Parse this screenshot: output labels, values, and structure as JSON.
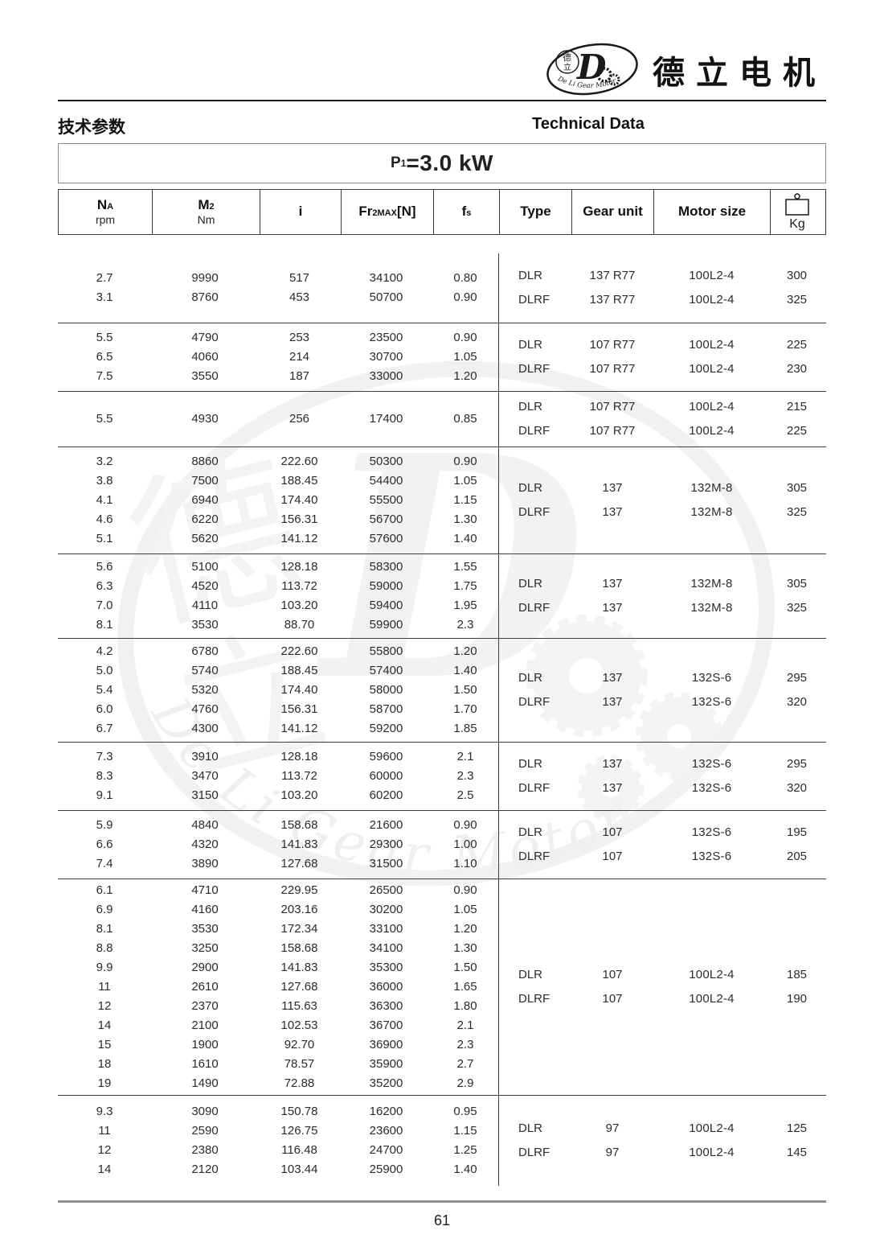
{
  "colors": {
    "text": "#222222",
    "border": "#3d3d3d",
    "thick_rule": "#8f8f8f",
    "watermark": "#e7e7e7"
  },
  "brand": {
    "name_cn": "德立电机",
    "logo_arc_text": "De Li Gear Motor",
    "logo_char_top": "德",
    "logo_char_bottom": "立",
    "logo_d_glyph": "D"
  },
  "watermark": {
    "char_top": "德",
    "char_bottom": "立",
    "d_glyph": "D",
    "arc_text": "De Li Gear Motor"
  },
  "header": {
    "section_cn": "技术参数",
    "section_en": "Technical Data"
  },
  "power": {
    "prefix": "P",
    "sub": "1",
    "rest": "=3.0 kW"
  },
  "table": {
    "header": {
      "na": {
        "main": "N",
        "sub": "A",
        "unit": "rpm"
      },
      "m2": {
        "main": "M",
        "sub": "2",
        "unit": "Nm"
      },
      "i": {
        "main": "i"
      },
      "fr": {
        "main": "Fr",
        "sub": "2MAX",
        "tail": "[N]"
      },
      "fs": {
        "main": "f",
        "sub": "s"
      },
      "type": {
        "label": "Type"
      },
      "gear": {
        "label": "Gear unit"
      },
      "motor": {
        "label": "Motor size"
      },
      "kg": {
        "label": "Kg",
        "icon": "weight-icon"
      }
    },
    "col_keys": [
      "na-rpm",
      "m2-nm",
      "ratio-i",
      "fr2max",
      "fs"
    ],
    "right_col_keys": [
      "type",
      "gear-unit",
      "motor-size",
      "weight-kg"
    ],
    "groups": [
      {
        "rows": [
          [
            "2.7",
            "9990",
            "517",
            "34100",
            "0.80"
          ],
          [
            "3.1",
            "8760",
            "453",
            "50700",
            "0.90"
          ]
        ],
        "right": [
          [
            "DLR",
            "137 R77",
            "100L2-4",
            "300"
          ],
          [
            "DLRF",
            "137 R77",
            "100L2-4",
            "325"
          ]
        ]
      },
      {
        "rows": [
          [
            "5.5",
            "4790",
            "253",
            "23500",
            "0.90"
          ],
          [
            "6.5",
            "4060",
            "214",
            "30700",
            "1.05"
          ],
          [
            "7.5",
            "3550",
            "187",
            "33000",
            "1.20"
          ]
        ],
        "right": [
          [
            "DLR",
            "107 R77",
            "100L2-4",
            "225"
          ],
          [
            "DLRF",
            "107 R77",
            "100L2-4",
            "230"
          ]
        ]
      },
      {
        "rows": [
          [
            "5.5",
            "4930",
            "256",
            "17400",
            "0.85"
          ]
        ],
        "right": [
          [
            "DLR",
            "107 R77",
            "100L2-4",
            "215"
          ],
          [
            "DLRF",
            "107 R77",
            "100L2-4",
            "225"
          ]
        ]
      },
      {
        "rows": [
          [
            "3.2",
            "8860",
            "222.60",
            "50300",
            "0.90"
          ],
          [
            "3.8",
            "7500",
            "188.45",
            "54400",
            "1.05"
          ],
          [
            "4.1",
            "6940",
            "174.40",
            "55500",
            "1.15"
          ],
          [
            "4.6",
            "6220",
            "156.31",
            "56700",
            "1.30"
          ],
          [
            "5.1",
            "5620",
            "141.12",
            "57600",
            "1.40"
          ]
        ],
        "right": [
          [
            "DLR",
            "137",
            "132M-8",
            "305"
          ],
          [
            "DLRF",
            "137",
            "132M-8",
            "325"
          ]
        ]
      },
      {
        "rows": [
          [
            "5.6",
            "5100",
            "128.18",
            "58300",
            "1.55"
          ],
          [
            "6.3",
            "4520",
            "113.72",
            "59000",
            "1.75"
          ],
          [
            "7.0",
            "4110",
            "103.20",
            "59400",
            "1.95"
          ],
          [
            "8.1",
            "3530",
            "88.70",
            "59900",
            "2.3"
          ]
        ],
        "right": [
          [
            "DLR",
            "137",
            "132M-8",
            "305"
          ],
          [
            "DLRF",
            "137",
            "132M-8",
            "325"
          ]
        ]
      },
      {
        "rows": [
          [
            "4.2",
            "6780",
            "222.60",
            "55800",
            "1.20"
          ],
          [
            "5.0",
            "5740",
            "188.45",
            "57400",
            "1.40"
          ],
          [
            "5.4",
            "5320",
            "174.40",
            "58000",
            "1.50"
          ],
          [
            "6.0",
            "4760",
            "156.31",
            "58700",
            "1.70"
          ],
          [
            "6.7",
            "4300",
            "141.12",
            "59200",
            "1.85"
          ]
        ],
        "right": [
          [
            "DLR",
            "137",
            "132S-6",
            "295"
          ],
          [
            "DLRF",
            "137",
            "132S-6",
            "320"
          ]
        ]
      },
      {
        "rows": [
          [
            "7.3",
            "3910",
            "128.18",
            "59600",
            "2.1"
          ],
          [
            "8.3",
            "3470",
            "113.72",
            "60000",
            "2.3"
          ],
          [
            "9.1",
            "3150",
            "103.20",
            "60200",
            "2.5"
          ]
        ],
        "right": [
          [
            "DLR",
            "137",
            "132S-6",
            "295"
          ],
          [
            "DLRF",
            "137",
            "132S-6",
            "320"
          ]
        ]
      },
      {
        "rows": [
          [
            "5.9",
            "4840",
            "158.68",
            "21600",
            "0.90"
          ],
          [
            "6.6",
            "4320",
            "141.83",
            "29300",
            "1.00"
          ],
          [
            "7.4",
            "3890",
            "127.68",
            "31500",
            "1.10"
          ]
        ],
        "right": [
          [
            "DLR",
            "107",
            "132S-6",
            "195"
          ],
          [
            "DLRF",
            "107",
            "132S-6",
            "205"
          ]
        ]
      },
      {
        "rows": [
          [
            "6.1",
            "4710",
            "229.95",
            "26500",
            "0.90"
          ],
          [
            "6.9",
            "4160",
            "203.16",
            "30200",
            "1.05"
          ],
          [
            "8.1",
            "3530",
            "172.34",
            "33100",
            "1.20"
          ],
          [
            "8.8",
            "3250",
            "158.68",
            "34100",
            "1.30"
          ],
          [
            "9.9",
            "2900",
            "141.83",
            "35300",
            "1.50"
          ],
          [
            "11",
            "2610",
            "127.68",
            "36000",
            "1.65"
          ],
          [
            "12",
            "2370",
            "115.63",
            "36300",
            "1.80"
          ],
          [
            "14",
            "2100",
            "102.53",
            "36700",
            "2.1"
          ],
          [
            "15",
            "1900",
            "92.70",
            "36900",
            "2.3"
          ],
          [
            "18",
            "1610",
            "78.57",
            "35900",
            "2.7"
          ],
          [
            "19",
            "1490",
            "72.88",
            "35200",
            "2.9"
          ]
        ],
        "right": [
          [
            "DLR",
            "107",
            "100L2-4",
            "185"
          ],
          [
            "DLRF",
            "107",
            "100L2-4",
            "190"
          ]
        ]
      },
      {
        "rows": [
          [
            "9.3",
            "3090",
            "150.78",
            "16200",
            "0.95"
          ],
          [
            "11",
            "2590",
            "126.75",
            "23600",
            "1.15"
          ],
          [
            "12",
            "2380",
            "116.48",
            "24700",
            "1.25"
          ],
          [
            "14",
            "2120",
            "103.44",
            "25900",
            "1.40"
          ]
        ],
        "right": [
          [
            "DLR",
            "97",
            "100L2-4",
            "125"
          ],
          [
            "DLRF",
            "97",
            "100L2-4",
            "145"
          ]
        ]
      }
    ]
  },
  "footer": {
    "page_number": "61"
  }
}
